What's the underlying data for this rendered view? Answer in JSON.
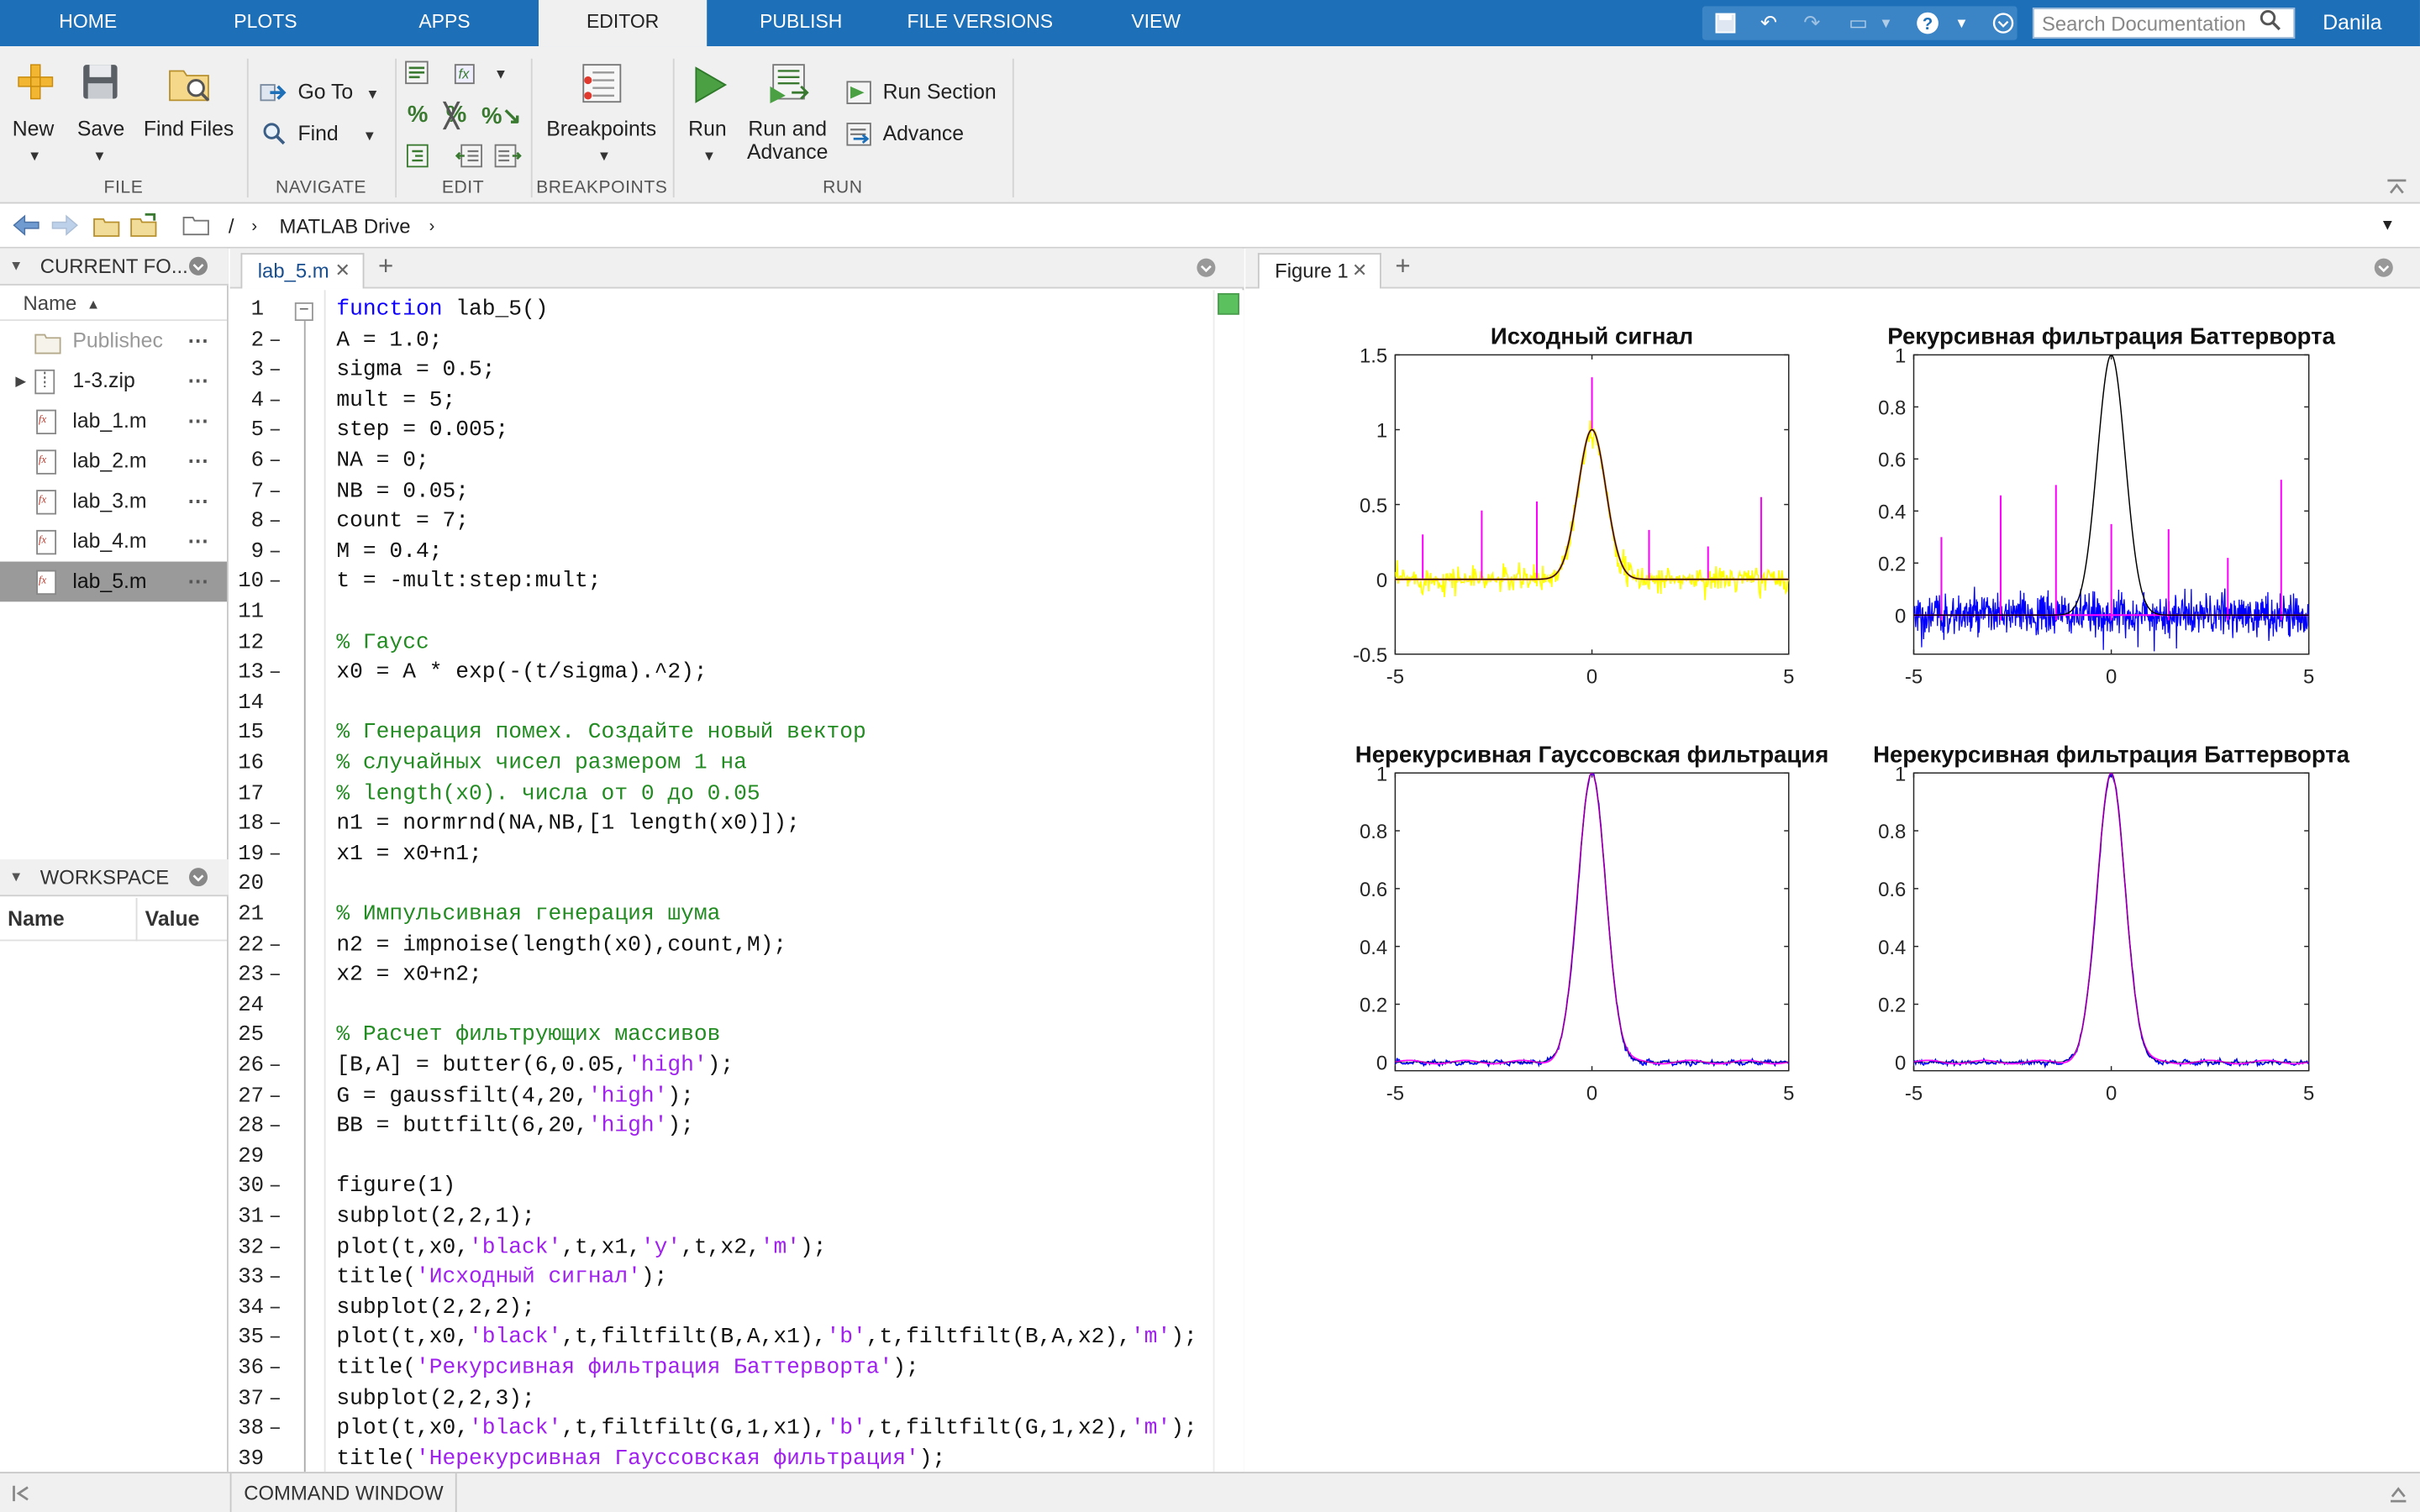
{
  "toolstrip": {
    "tabs": [
      "HOME",
      "PLOTS",
      "APPS",
      "EDITOR",
      "PUBLISH",
      "FILE VERSIONS",
      "VIEW"
    ],
    "active_tab": "EDITOR",
    "search_placeholder": "Search Documentation",
    "user": "Danila"
  },
  "ribbon": {
    "file": {
      "label": "FILE",
      "new": "New",
      "save": "Save",
      "find_files": "Find Files"
    },
    "navigate": {
      "label": "NAVIGATE",
      "go_to": "Go To",
      "find": "Find"
    },
    "edit": {
      "label": "EDIT"
    },
    "breakpoints": {
      "label": "BREAKPOINTS",
      "breakpoints": "Breakpoints"
    },
    "run": {
      "label": "RUN",
      "run": "Run",
      "run_and_advance_1": "Run and",
      "run_and_advance_2": "Advance",
      "run_section": "Run Section",
      "advance": "Advance"
    }
  },
  "pathbar": {
    "root": "/",
    "folder": "MATLAB Drive"
  },
  "current_folder": {
    "title": "CURRENT FO...",
    "column_name": "Name",
    "files": [
      {
        "name": "Publishec",
        "type": "folder"
      },
      {
        "name": "1-3.zip",
        "type": "zip"
      },
      {
        "name": "lab_1.m",
        "type": "m"
      },
      {
        "name": "lab_2.m",
        "type": "m"
      },
      {
        "name": "lab_3.m",
        "type": "m"
      },
      {
        "name": "lab_4.m",
        "type": "m"
      },
      {
        "name": "lab_5.m",
        "type": "m",
        "selected": true
      }
    ]
  },
  "workspace": {
    "title": "WORKSPACE",
    "col_name": "Name",
    "col_value": "Value"
  },
  "editor": {
    "tab": "lab_5.m",
    "lines": [
      [
        [
          "kw",
          "function"
        ],
        [
          "n",
          " lab_5()"
        ]
      ],
      [
        [
          "n",
          "A = 1.0;"
        ]
      ],
      [
        [
          "n",
          "sigma = 0.5;"
        ]
      ],
      [
        [
          "n",
          "mult = 5;"
        ]
      ],
      [
        [
          "n",
          "step = 0.005;"
        ]
      ],
      [
        [
          "n",
          "NA = 0;"
        ]
      ],
      [
        [
          "n",
          "NB = 0.05;"
        ]
      ],
      [
        [
          "n",
          "count = 7;"
        ]
      ],
      [
        [
          "n",
          "M = 0.4;"
        ]
      ],
      [
        [
          "n",
          "t = -mult:step:mult;"
        ]
      ],
      [],
      [
        [
          "cm",
          "% Гаусс"
        ]
      ],
      [
        [
          "n",
          "x0 = A * exp(-(t/sigma).^2);"
        ]
      ],
      [],
      [
        [
          "cm",
          "% Генерация помех. Создайте новый вектор"
        ]
      ],
      [
        [
          "cm",
          "% случайных чисел размером 1 на"
        ]
      ],
      [
        [
          "cm",
          "% length(x0). числа от 0 до 0.05"
        ]
      ],
      [
        [
          "n",
          "n1 = normrnd(NA,NB,[1 length(x0)]);"
        ]
      ],
      [
        [
          "n",
          "x1 = x0+n1;"
        ]
      ],
      [],
      [
        [
          "cm",
          "% Импульсивная генерация шума"
        ]
      ],
      [
        [
          "n",
          "n2 = impnoise(length(x0),count,M);"
        ]
      ],
      [
        [
          "n",
          "x2 = x0+n2;"
        ]
      ],
      [],
      [
        [
          "cm",
          "% Расчет фильтрующих массивов"
        ]
      ],
      [
        [
          "n",
          "[B,A] = butter(6,0.05,"
        ],
        [
          "st",
          "'high'"
        ],
        [
          "n",
          ");"
        ]
      ],
      [
        [
          "n",
          "G = gaussfilt(4,20,"
        ],
        [
          "st",
          "'high'"
        ],
        [
          "n",
          ");"
        ]
      ],
      [
        [
          "n",
          "BB = buttfilt(6,20,"
        ],
        [
          "st",
          "'high'"
        ],
        [
          "n",
          ");"
        ]
      ],
      [],
      [
        [
          "n",
          "figure(1)"
        ]
      ],
      [
        [
          "n",
          "subplot(2,2,1);"
        ]
      ],
      [
        [
          "n",
          "plot(t,x0,"
        ],
        [
          "st",
          "'black'"
        ],
        [
          "n",
          ",t,x1,"
        ],
        [
          "st",
          "'y'"
        ],
        [
          "n",
          ",t,x2,"
        ],
        [
          "st",
          "'m'"
        ],
        [
          "n",
          ");"
        ]
      ],
      [
        [
          "n",
          "title("
        ],
        [
          "st",
          "'Исходный сигнал'"
        ],
        [
          "n",
          ");"
        ]
      ],
      [
        [
          "n",
          "subplot(2,2,2);"
        ]
      ],
      [
        [
          "n",
          "plot(t,x0,"
        ],
        [
          "st",
          "'black'"
        ],
        [
          "n",
          ",t,filtfilt(B,A,x1),"
        ],
        [
          "st",
          "'b'"
        ],
        [
          "n",
          ",t,filtfilt(B,A,x2),"
        ],
        [
          "st",
          "'m'"
        ],
        [
          "n",
          ");"
        ]
      ],
      [
        [
          "n",
          "title("
        ],
        [
          "st",
          "'Рекурсивная фильтрация Баттерворта'"
        ],
        [
          "n",
          ");"
        ]
      ],
      [
        [
          "n",
          "subplot(2,2,3);"
        ]
      ],
      [
        [
          "n",
          "plot(t,x0,"
        ],
        [
          "st",
          "'black'"
        ],
        [
          "n",
          ",t,filtfilt(G,1,x1),"
        ],
        [
          "st",
          "'b'"
        ],
        [
          "n",
          ",t,filtfilt(G,1,x2),"
        ],
        [
          "st",
          "'m'"
        ],
        [
          "n",
          ");"
        ]
      ],
      [
        [
          "n",
          "title("
        ],
        [
          "st",
          "'Нерекурсивная Гауссовская фильтрация'"
        ],
        [
          "n",
          ");"
        ]
      ]
    ],
    "dash_lines": [
      2,
      3,
      4,
      5,
      6,
      7,
      8,
      9,
      10,
      13,
      18,
      19,
      22,
      23,
      26,
      27,
      28,
      30,
      31,
      32,
      33,
      34,
      35,
      36,
      37,
      38
    ]
  },
  "figure": {
    "tab": "Figure 1"
  },
  "chart_data": [
    {
      "type": "line",
      "title": "Исходный сигнал",
      "xlim": [
        -5,
        5
      ],
      "ylim": [
        -0.5,
        1.5
      ],
      "xticks": [
        -5,
        0,
        5
      ],
      "yticks": [
        -0.5,
        0,
        0.5,
        1,
        1.5
      ],
      "series": [
        {
          "color": "#000000",
          "description": "x0 = exp(-(t/0.5)^2)"
        },
        {
          "color": "#ffff00",
          "description": "x1 = x0 + normal noise (sd 0.05)"
        },
        {
          "color": "#ff00ff",
          "description": "x2 = x0 + impulse noise"
        }
      ],
      "impulses": [
        [
          -4.3,
          0.3
        ],
        [
          -2.8,
          0.46
        ],
        [
          -1.4,
          0.52
        ],
        [
          0.0,
          1.35
        ],
        [
          1.45,
          0.33
        ],
        [
          2.95,
          0.22
        ],
        [
          4.3,
          0.55
        ]
      ]
    },
    {
      "type": "line",
      "title": "Рекурсивная фильтрация Баттерворта",
      "xlim": [
        -5,
        5
      ],
      "ylim": [
        -0.15,
        1
      ],
      "xticks": [
        -5,
        0,
        5
      ],
      "yticks": [
        0,
        0.2,
        0.4,
        0.6,
        0.8,
        1
      ],
      "series": [
        {
          "color": "#000000",
          "description": "x0"
        },
        {
          "color": "#0000ff",
          "description": "filtfilt(B,A,x1)"
        },
        {
          "color": "#ff00ff",
          "description": "filtfilt(B,A,x2)"
        }
      ],
      "impulses": [
        [
          -4.3,
          0.3
        ],
        [
          -2.8,
          0.46
        ],
        [
          -1.4,
          0.5
        ],
        [
          0.0,
          0.35
        ],
        [
          1.45,
          0.33
        ],
        [
          2.95,
          0.22
        ],
        [
          4.3,
          0.52
        ]
      ]
    },
    {
      "type": "line",
      "title": "Нерекурсивная Гауссовская фильтрация",
      "xlim": [
        -5,
        5
      ],
      "ylim": [
        -0.03,
        1
      ],
      "xticks": [
        -5,
        0,
        5
      ],
      "yticks": [
        0,
        0.2,
        0.4,
        0.6,
        0.8,
        1
      ],
      "series": [
        {
          "color": "#000000",
          "description": "x0"
        },
        {
          "color": "#0000ff",
          "description": "filtfilt(G,1,x1)"
        },
        {
          "color": "#ff00ff",
          "description": "filtfilt(G,1,x2)"
        }
      ]
    },
    {
      "type": "line",
      "title": "Нерекурсивная фильтрация Баттерворта",
      "xlim": [
        -5,
        5
      ],
      "ylim": [
        -0.03,
        1
      ],
      "xticks": [
        -5,
        0,
        5
      ],
      "yticks": [
        0,
        0.2,
        0.4,
        0.6,
        0.8,
        1
      ],
      "series": [
        {
          "color": "#000000",
          "description": "x0"
        },
        {
          "color": "#0000ff",
          "description": "filtfilt(BB,1,x1)"
        },
        {
          "color": "#ff00ff",
          "description": "filtfilt(BB,1,x2)"
        }
      ]
    }
  ],
  "statusbar": {
    "command_window": "COMMAND WINDOW"
  },
  "colors": {
    "toolstrip_blue": "#1d6fb8",
    "ribbon_bg": "#f0f0f0",
    "keyword": "#0e00ff",
    "comment": "#228b22",
    "string": "#a020f0"
  }
}
